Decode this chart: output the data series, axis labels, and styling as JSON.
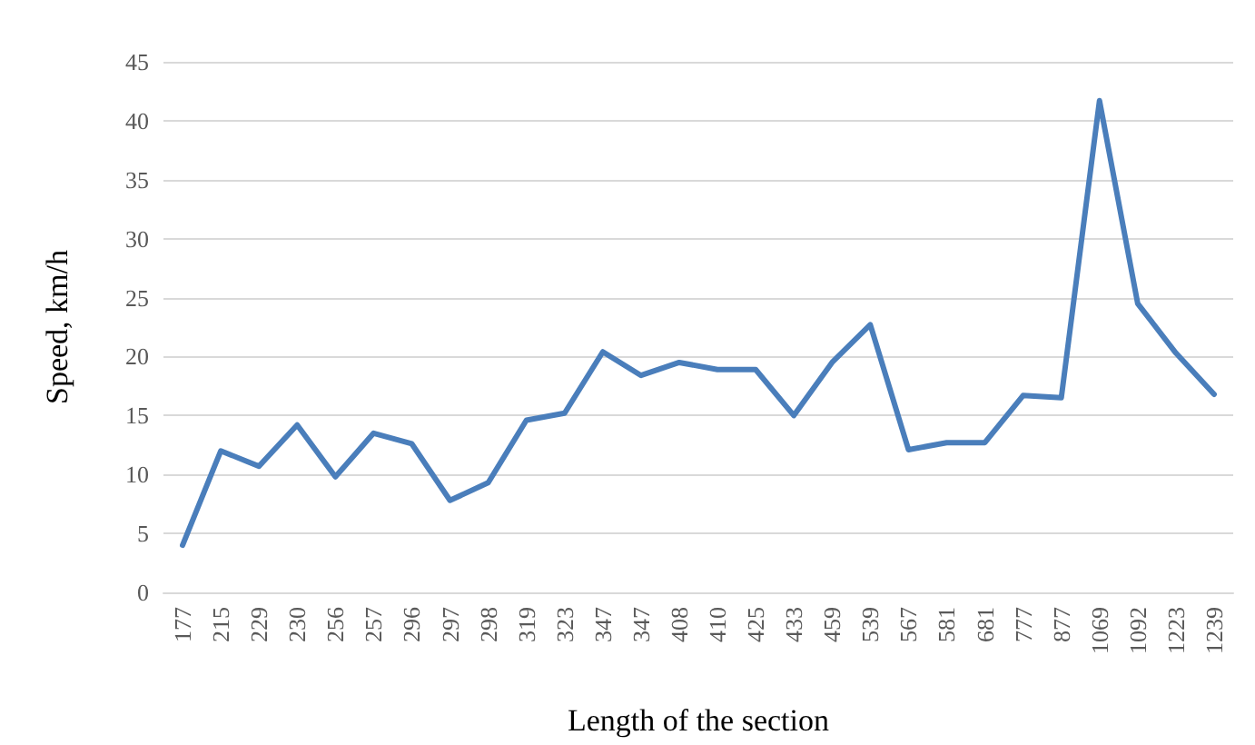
{
  "chart_data": {
    "type": "line",
    "xlabel": "Length of the section",
    "ylabel": "Speed, km/h",
    "categories": [
      "177",
      "215",
      "229",
      "230",
      "256",
      "257",
      "296",
      "297",
      "298",
      "319",
      "323",
      "347",
      "347",
      "408",
      "410",
      "425",
      "433",
      "459",
      "539",
      "567",
      "581",
      "681",
      "777",
      "877",
      "1069",
      "1092",
      "1223",
      "1239"
    ],
    "series": [
      {
        "color": "#4a7ebb",
        "values": [
          4,
          12,
          10.7,
          14.2,
          9.8,
          13.5,
          12.6,
          7.8,
          9.3,
          14.6,
          15.2,
          20.4,
          18.4,
          19.5,
          18.9,
          18.9,
          15,
          19.5,
          22.7,
          12.1,
          12.7,
          12.7,
          16.7,
          16.5,
          41.7,
          24.5,
          20.3,
          16.8
        ]
      }
    ],
    "ylim": [
      0,
      45
    ],
    "yticks": [
      0,
      5,
      10,
      15,
      20,
      25,
      30,
      35,
      40,
      45
    ],
    "grid": "y",
    "marker": "none",
    "line_style": "solid"
  }
}
